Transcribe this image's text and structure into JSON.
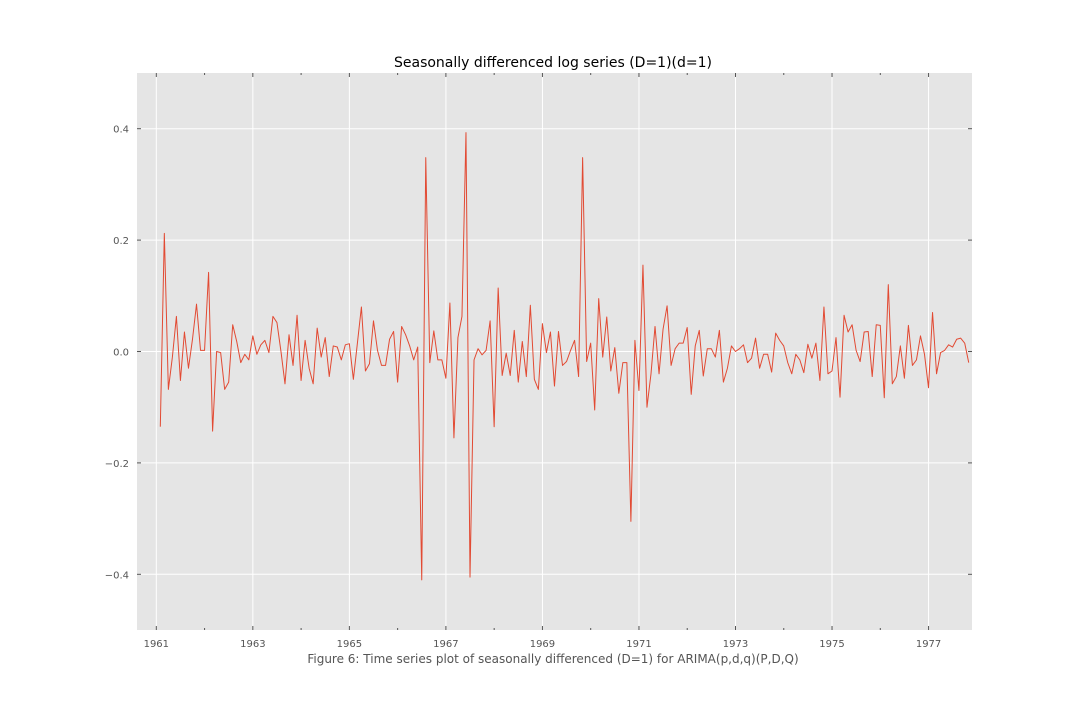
{
  "chart_data": {
    "type": "line",
    "title": "Seasonally differenced log series (D=1)(d=1)",
    "caption": "Figure 6: Time series plot of seasonally differenced (D=1) for ARIMA(p,d,q)(P,D,Q)",
    "xlabel": "",
    "ylabel": "",
    "x_start": 1961.083,
    "x_step": 0.08333,
    "xlim": [
      1960.6,
      1977.9
    ],
    "ylim": [
      -0.5,
      0.5
    ],
    "x_ticks": [
      1961,
      1963,
      1965,
      1967,
      1969,
      1971,
      1973,
      1975,
      1977
    ],
    "x_minor_ticks": [
      1962,
      1964,
      1966,
      1968,
      1970,
      1972,
      1974,
      1976
    ],
    "y_ticks": [
      -0.4,
      -0.2,
      0.0,
      0.2,
      0.4
    ],
    "y_tick_labels": [
      "−0.4",
      "−0.2",
      "0.0",
      "0.2",
      "0.4"
    ],
    "grid": true,
    "background": "#e5e5e5",
    "grid_color": "#ffffff",
    "line_color": "#e24a33",
    "series": [
      {
        "values": [
          -0.135,
          0.212,
          -0.068,
          -0.01,
          0.063,
          -0.052,
          0.035,
          -0.03,
          0.022,
          0.085,
          0.002,
          0.002,
          0.142,
          -0.143,
          0.0,
          -0.002,
          -0.068,
          -0.055,
          0.048,
          0.018,
          -0.02,
          -0.005,
          -0.015,
          0.028,
          -0.005,
          0.012,
          0.02,
          -0.002,
          0.063,
          0.052,
          0.0,
          -0.058,
          0.03,
          -0.025,
          0.065,
          -0.052,
          0.02,
          -0.03,
          -0.058,
          0.042,
          -0.01,
          0.025,
          -0.045,
          0.01,
          0.008,
          -0.015,
          0.012,
          0.014,
          -0.05,
          0.015,
          0.08,
          -0.035,
          -0.022,
          0.055,
          0.002,
          -0.025,
          -0.025,
          0.022,
          0.036,
          -0.055,
          0.045,
          0.03,
          0.01,
          -0.015,
          0.008,
          -0.41,
          0.348,
          -0.02,
          0.037,
          -0.015,
          -0.015,
          -0.048,
          0.087,
          -0.155,
          0.025,
          0.063,
          0.393,
          -0.405,
          -0.015,
          0.005,
          -0.006,
          0.002,
          0.055,
          -0.135,
          0.114,
          -0.043,
          -0.003,
          -0.043,
          0.038,
          -0.055,
          0.018,
          -0.045,
          0.083,
          -0.05,
          -0.068,
          0.05,
          -0.002,
          0.035,
          -0.062,
          0.036,
          -0.025,
          -0.018,
          0.002,
          0.02,
          -0.045,
          0.348,
          -0.018,
          0.015,
          -0.105,
          0.095,
          -0.01,
          0.062,
          -0.035,
          0.007,
          -0.075,
          -0.02,
          -0.02,
          -0.305,
          0.02,
          -0.07,
          0.155,
          -0.1,
          -0.04,
          0.045,
          -0.04,
          0.04,
          0.082,
          -0.025,
          0.005,
          0.015,
          0.015,
          0.043,
          -0.077,
          0.01,
          0.038,
          -0.044,
          0.005,
          0.005,
          -0.01,
          0.038,
          -0.055,
          -0.03,
          0.01,
          0.0,
          0.005,
          0.012,
          -0.02,
          -0.012,
          0.024,
          -0.03,
          -0.005,
          -0.005,
          -0.037,
          0.033,
          0.02,
          0.01,
          -0.02,
          -0.04,
          -0.005,
          -0.015,
          -0.038,
          0.013,
          -0.012,
          0.015,
          -0.052,
          0.08,
          -0.04,
          -0.035,
          0.025,
          -0.082,
          0.065,
          0.035,
          0.048,
          0.002,
          -0.018,
          0.035,
          0.036,
          -0.045,
          0.048,
          0.047,
          -0.083,
          0.12,
          -0.058,
          -0.045,
          0.01,
          -0.048,
          0.047,
          -0.025,
          -0.015,
          0.028,
          -0.005,
          -0.065,
          0.07,
          -0.04,
          -0.002,
          0.002,
          0.012,
          0.008,
          0.022,
          0.024,
          0.015,
          -0.02
        ]
      }
    ]
  }
}
